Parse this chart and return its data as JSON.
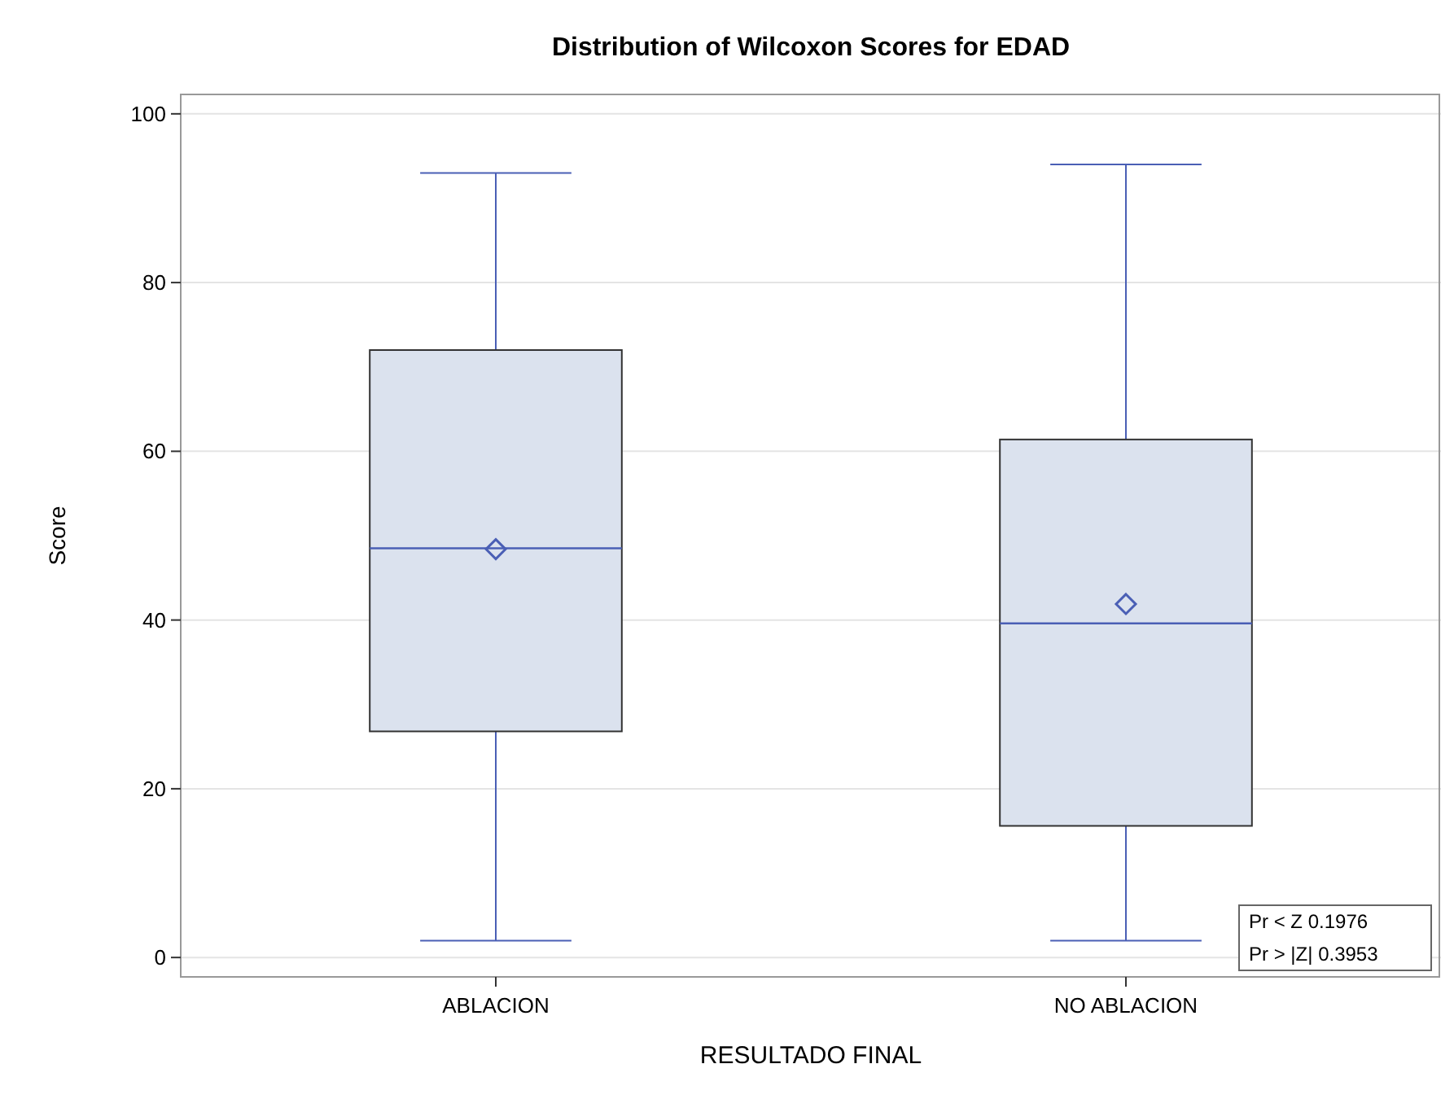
{
  "chart_data": {
    "type": "box",
    "title": "Distribution of Wilcoxon Scores for EDAD",
    "xlabel": "RESULTADO FINAL",
    "ylabel": "Score",
    "categories": [
      "ABLACION",
      "NO ABLACION"
    ],
    "boxes": [
      {
        "low": 2,
        "q1": 26.8,
        "median": 48.5,
        "q3": 72,
        "high": 93,
        "mean": 48.4
      },
      {
        "low": 2,
        "q1": 15.6,
        "median": 39.6,
        "q3": 61.4,
        "high": 94,
        "mean": 41.9
      }
    ],
    "color": "#dbe2ee",
    "ylim": [
      -2.3,
      102.3
    ],
    "yticks": [
      0,
      20,
      40,
      60,
      80,
      100
    ],
    "grid": "y",
    "marker": "diamond",
    "annotations": [
      "Pr < Z 0.1976",
      "Pr > |Z| 0.3953"
    ]
  }
}
